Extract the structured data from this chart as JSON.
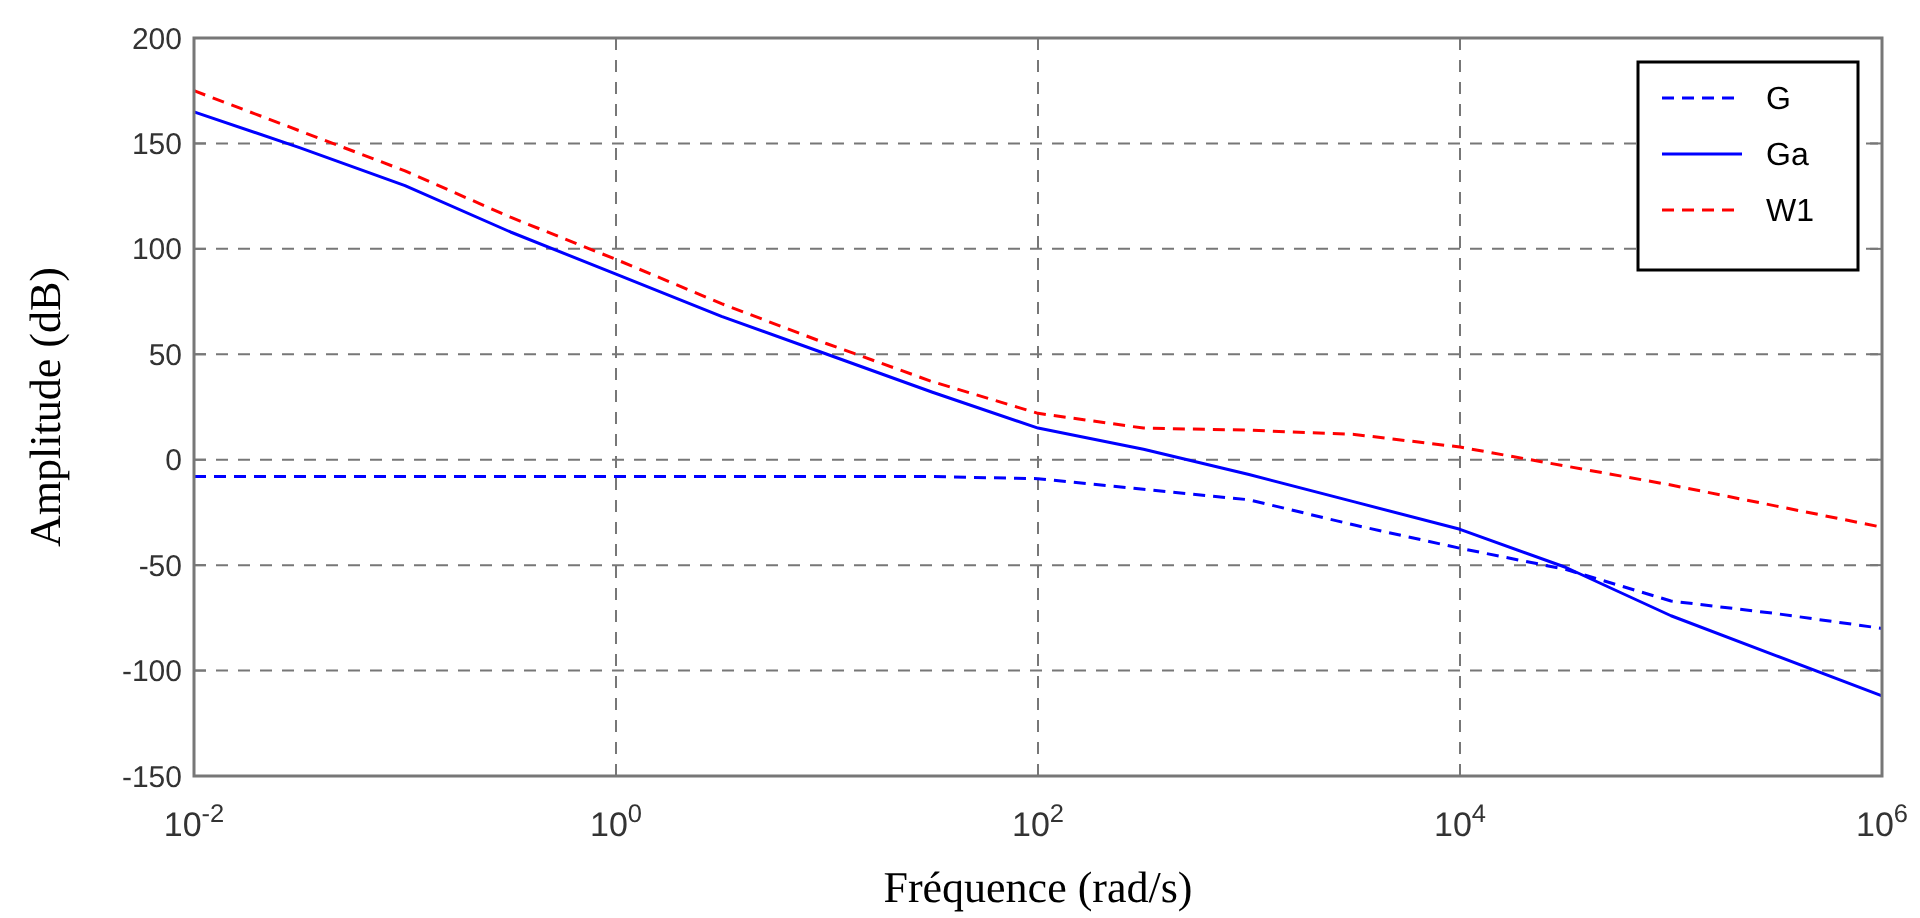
{
  "chart_data": {
    "type": "line",
    "xlabel": "Fréquence (rad/s)",
    "ylabel": "Amplitude (dB)",
    "log": "x",
    "x": [
      0.01,
      0.03162,
      0.1,
      0.3162,
      1,
      3.162,
      10,
      31.62,
      100,
      316.2,
      1000,
      3162,
      10000,
      31620,
      100000,
      316200,
      1000000
    ],
    "xlim": [
      0.01,
      1000000
    ],
    "xticks": [
      {
        "value": 0.01,
        "label": "10$^{-2}$"
      },
      {
        "value": 1,
        "label": "10$^{0}$"
      },
      {
        "value": 100,
        "label": "10$^{2}$"
      },
      {
        "value": 10000,
        "label": "10$^{4}$"
      },
      {
        "value": 1000000,
        "label": "10$^{6}$"
      }
    ],
    "ylim": [
      -150,
      200
    ],
    "yticks": [
      -150,
      -100,
      -50,
      0,
      50,
      100,
      150,
      200
    ],
    "grid": true,
    "legend": "top right",
    "series": [
      {
        "name": "G",
        "color": "#0000ff",
        "line_style": "dashed",
        "values": [
          -8,
          -8,
          -8,
          -8,
          -8,
          -8,
          -8,
          -8,
          -9,
          -14,
          -19,
          -31,
          -42,
          -52,
          -67,
          -73,
          -80
        ]
      },
      {
        "name": "Ga",
        "color": "#0000ff",
        "line_style": "solid",
        "values": [
          165,
          148,
          130,
          108,
          88,
          68,
          50,
          32,
          15,
          5,
          -7,
          -20,
          -33,
          -51,
          -74,
          -93,
          -112
        ]
      },
      {
        "name": "W1",
        "color": "#ff0000",
        "line_style": "dashed",
        "values": [
          175,
          156,
          137,
          115,
          95,
          74,
          55,
          37,
          22,
          15,
          14,
          12,
          6,
          -3,
          -12,
          -22,
          -32
        ]
      }
    ]
  }
}
